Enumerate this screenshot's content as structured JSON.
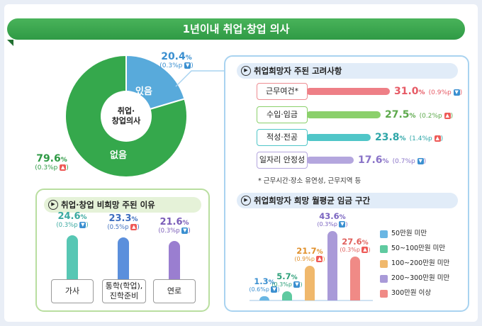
{
  "title": "1년이내 취업·창업 의사",
  "colors": {
    "green": "#35a84c",
    "blue": "#58aadb",
    "red": "#ee5a57",
    "teal": "#36b9b2"
  },
  "pie": {
    "center_label_1": "취업·",
    "center_label_2": "창업의사",
    "yes": {
      "label": "있음",
      "value": "20.4",
      "pct_sym": "%",
      "change": "(0.3%p",
      "direction": "down"
    },
    "no": {
      "label": "없음",
      "value": "79.6",
      "pct_sym": "%",
      "change": "(0.3%p",
      "direction": "up"
    }
  },
  "chart_data": [
    {
      "type": "pie",
      "categories": [
        "있음",
        "없음"
      ],
      "values": [
        20.4,
        79.6
      ],
      "changes_pp": [
        -0.3,
        0.3
      ]
    },
    {
      "type": "bar",
      "title": "취업희망자 주된 고려사항",
      "categories": [
        "근무여건*",
        "수입·임금",
        "적성·전공",
        "일자리 안정성"
      ],
      "values": [
        31.0,
        27.5,
        23.8,
        17.6
      ],
      "changes_pp": [
        -0.9,
        0.2,
        1.4,
        -0.7
      ]
    },
    {
      "type": "bar",
      "title": "취업·창업 비희망 주된 이유",
      "categories": [
        "가사",
        "통학(학업), 진학준비",
        "연로"
      ],
      "values": [
        24.6,
        23.3,
        21.6
      ],
      "changes_pp": [
        -0.3,
        0.5,
        -0.3
      ]
    },
    {
      "type": "bar",
      "title": "취업희망자 희망 월평균 임금 구간",
      "categories": [
        "50만원 미만",
        "50~100만원 미만",
        "100~200만원 미만",
        "200~300만원 미만",
        "300만원 이상"
      ],
      "values": [
        1.3,
        5.7,
        21.7,
        43.6,
        27.6
      ],
      "changes_pp": [
        -0.6,
        -0.3,
        0.9,
        -0.3,
        0.3
      ]
    }
  ],
  "factors": {
    "title": "취업희망자 주된 고려사항",
    "note": "* 근무시간·장소 유연성, 근무지역 등",
    "items": [
      {
        "label": "근무여건*",
        "value": "31.0",
        "change": "(0.9%p",
        "direction": "down",
        "color": "#ee7f86",
        "border": "#ee8c92"
      },
      {
        "label": "수입·임금",
        "value": "27.5",
        "change": "(0.2%p",
        "direction": "up",
        "color": "#8bd06b",
        "border": "#8bd06b"
      },
      {
        "label": "적성·전공",
        "value": "23.8",
        "change": "(1.4%p",
        "direction": "up",
        "color": "#50c6c8",
        "border": "#50c6c8"
      },
      {
        "label": "일자리 안정성",
        "value": "17.6",
        "change": "(0.7%p",
        "direction": "down",
        "color": "#b4a6de",
        "border": "#b4a6de"
      }
    ]
  },
  "reasons": {
    "title": "취업·창업 비희망 주된 이유",
    "items": [
      {
        "label1": "가사",
        "label2": "",
        "value": "24.6",
        "change": "(0.3%p",
        "direction": "down",
        "color": "#57c7b4",
        "value_color": "#3aa9a0"
      },
      {
        "label1": "통학(학업),",
        "label2": "진학준비",
        "value": "23.3",
        "change": "(0.5%p",
        "direction": "up",
        "color": "#5b8fdc",
        "value_color": "#3f6fbf"
      },
      {
        "label1": "연로",
        "label2": "",
        "value": "21.6",
        "change": "(0.3%p",
        "direction": "down",
        "color": "#9a7ed0",
        "value_color": "#7a5cb8"
      }
    ]
  },
  "wage": {
    "title": "취업희망자 희망 월평균 임금 구간",
    "items": [
      {
        "legend": "50만원 미만",
        "value": "1.3",
        "change": "(0.6%p",
        "direction": "down",
        "color": "#69b6e3"
      },
      {
        "legend": "50~100만원 미만",
        "value": "5.7",
        "change": "(0.3%p",
        "direction": "down",
        "color": "#5fcaa0"
      },
      {
        "legend": "100~200만원 미만",
        "value": "21.7",
        "change": "(0.9%p",
        "direction": "up",
        "color": "#f0b86c"
      },
      {
        "legend": "200~300만원 미만",
        "value": "43.6",
        "change": "(0.3%p",
        "direction": "down",
        "color": "#a99ad8"
      },
      {
        "legend": "300만원 이상",
        "value": "27.6",
        "change": "(0.3%p",
        "direction": "up",
        "color": "#f08a86"
      }
    ]
  },
  "pct_sym": "%",
  "up_glyph": "▲",
  "down_glyph": "▼",
  "play_glyph": "▶"
}
